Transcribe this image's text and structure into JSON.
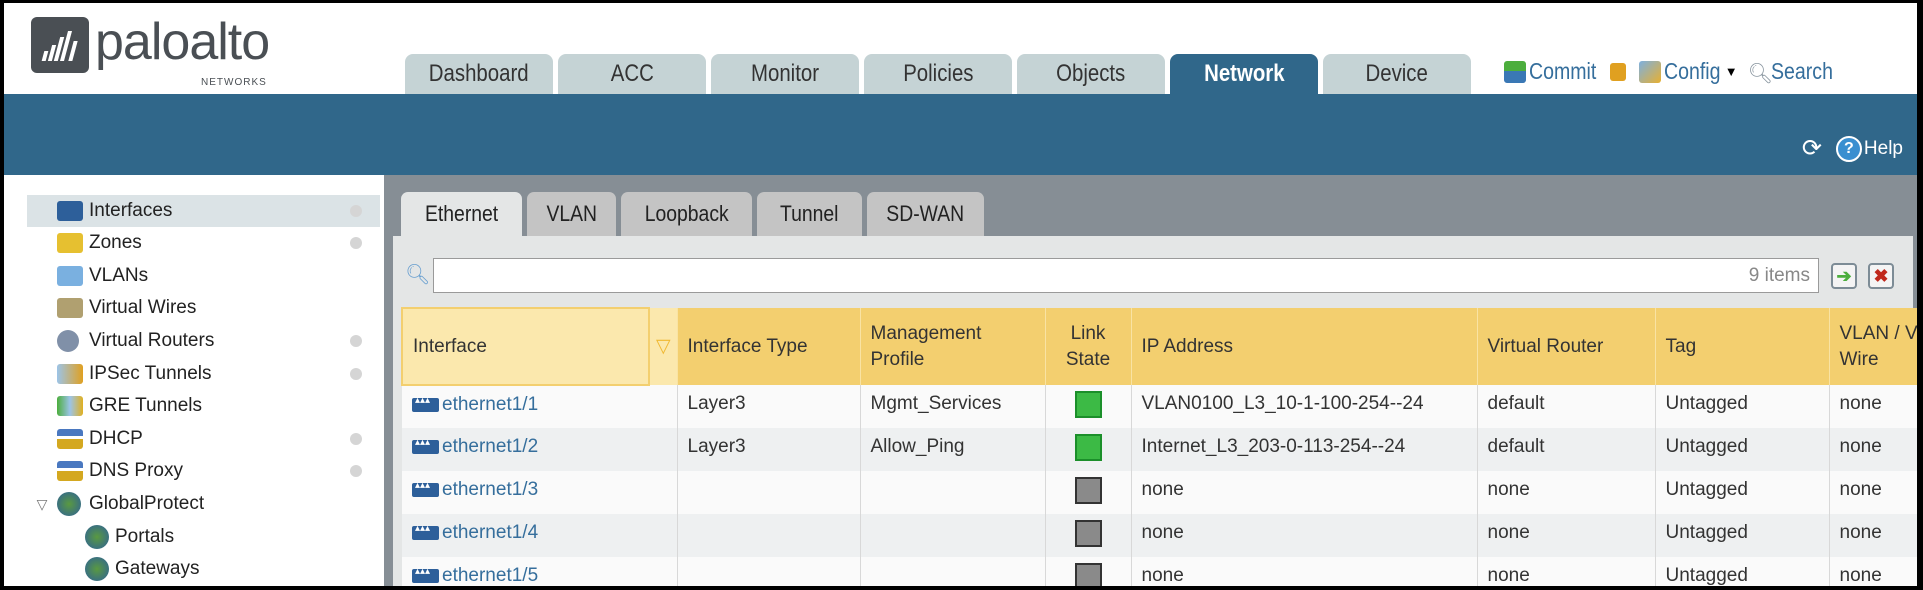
{
  "brand": {
    "name": "paloalto",
    "sub": "NETWORKS"
  },
  "nav": {
    "tabs": [
      {
        "label": "Dashboard"
      },
      {
        "label": "ACC"
      },
      {
        "label": "Monitor"
      },
      {
        "label": "Policies"
      },
      {
        "label": "Objects"
      },
      {
        "label": "Network",
        "active": true
      },
      {
        "label": "Device"
      }
    ]
  },
  "toolbar": {
    "commit": "Commit",
    "config": "Config",
    "search": "Search",
    "help": "Help"
  },
  "sidebar": {
    "items": [
      {
        "label": "Interfaces",
        "icon": "interfaces-icon",
        "selected": true,
        "dot": true
      },
      {
        "label": "Zones",
        "icon": "zones-icon",
        "dot": true
      },
      {
        "label": "VLANs",
        "icon": "vlans-icon"
      },
      {
        "label": "Virtual Wires",
        "icon": "virtual-wires-icon"
      },
      {
        "label": "Virtual Routers",
        "icon": "virtual-routers-icon",
        "dot": true
      },
      {
        "label": "IPSec Tunnels",
        "icon": "ipsec-tunnels-icon",
        "dot": true
      },
      {
        "label": "GRE Tunnels",
        "icon": "gre-tunnels-icon"
      },
      {
        "label": "DHCP",
        "icon": "dhcp-icon",
        "dot": true
      },
      {
        "label": "DNS Proxy",
        "icon": "dns-proxy-icon",
        "dot": true
      },
      {
        "label": "GlobalProtect",
        "icon": "globalprotect-icon",
        "expanded": true
      },
      {
        "label": "Portals",
        "icon": "portals-icon",
        "child": true
      },
      {
        "label": "Gateways",
        "icon": "gateways-icon",
        "child": true
      }
    ]
  },
  "subtabs": [
    {
      "label": "Ethernet",
      "active": true
    },
    {
      "label": "VLAN"
    },
    {
      "label": "Loopback"
    },
    {
      "label": "Tunnel"
    },
    {
      "label": "SD-WAN"
    }
  ],
  "filter": {
    "count": "9 items",
    "value": ""
  },
  "table": {
    "headers": {
      "interface": "Interface",
      "type": "Interface Type",
      "mgmt1": "Management",
      "mgmt2": "Profile",
      "link1": "Link",
      "link2": "State",
      "ip": "IP Address",
      "vr": "Virtual Router",
      "tag": "Tag",
      "vlan1": "VLAN / Virtual",
      "vlan2": "Wire"
    },
    "rows": [
      {
        "interface": "ethernet1/1",
        "type": "Layer3",
        "mgmt": "Mgmt_Services",
        "link": "up",
        "ip": "VLAN0100_L3_10-1-100-254--24",
        "vr": "default",
        "tag": "Untagged",
        "vlan": "none"
      },
      {
        "interface": "ethernet1/2",
        "type": "Layer3",
        "mgmt": "Allow_Ping",
        "link": "up",
        "ip": "Internet_L3_203-0-113-254--24",
        "vr": "default",
        "tag": "Untagged",
        "vlan": "none"
      },
      {
        "interface": "ethernet1/3",
        "type": "",
        "mgmt": "",
        "link": "down",
        "ip": "none",
        "vr": "none",
        "tag": "Untagged",
        "vlan": "none"
      },
      {
        "interface": "ethernet1/4",
        "type": "",
        "mgmt": "",
        "link": "down",
        "ip": "none",
        "vr": "none",
        "tag": "Untagged",
        "vlan": "none"
      },
      {
        "interface": "ethernet1/5",
        "type": "",
        "mgmt": "",
        "link": "down",
        "ip": "none",
        "vr": "none",
        "tag": "Untagged",
        "vlan": "none"
      }
    ]
  },
  "colors": {
    "brand_blue": "#30678a",
    "header_yellow": "#f3cf6f",
    "link": "#356e9c",
    "link_up": "#3cba45"
  }
}
